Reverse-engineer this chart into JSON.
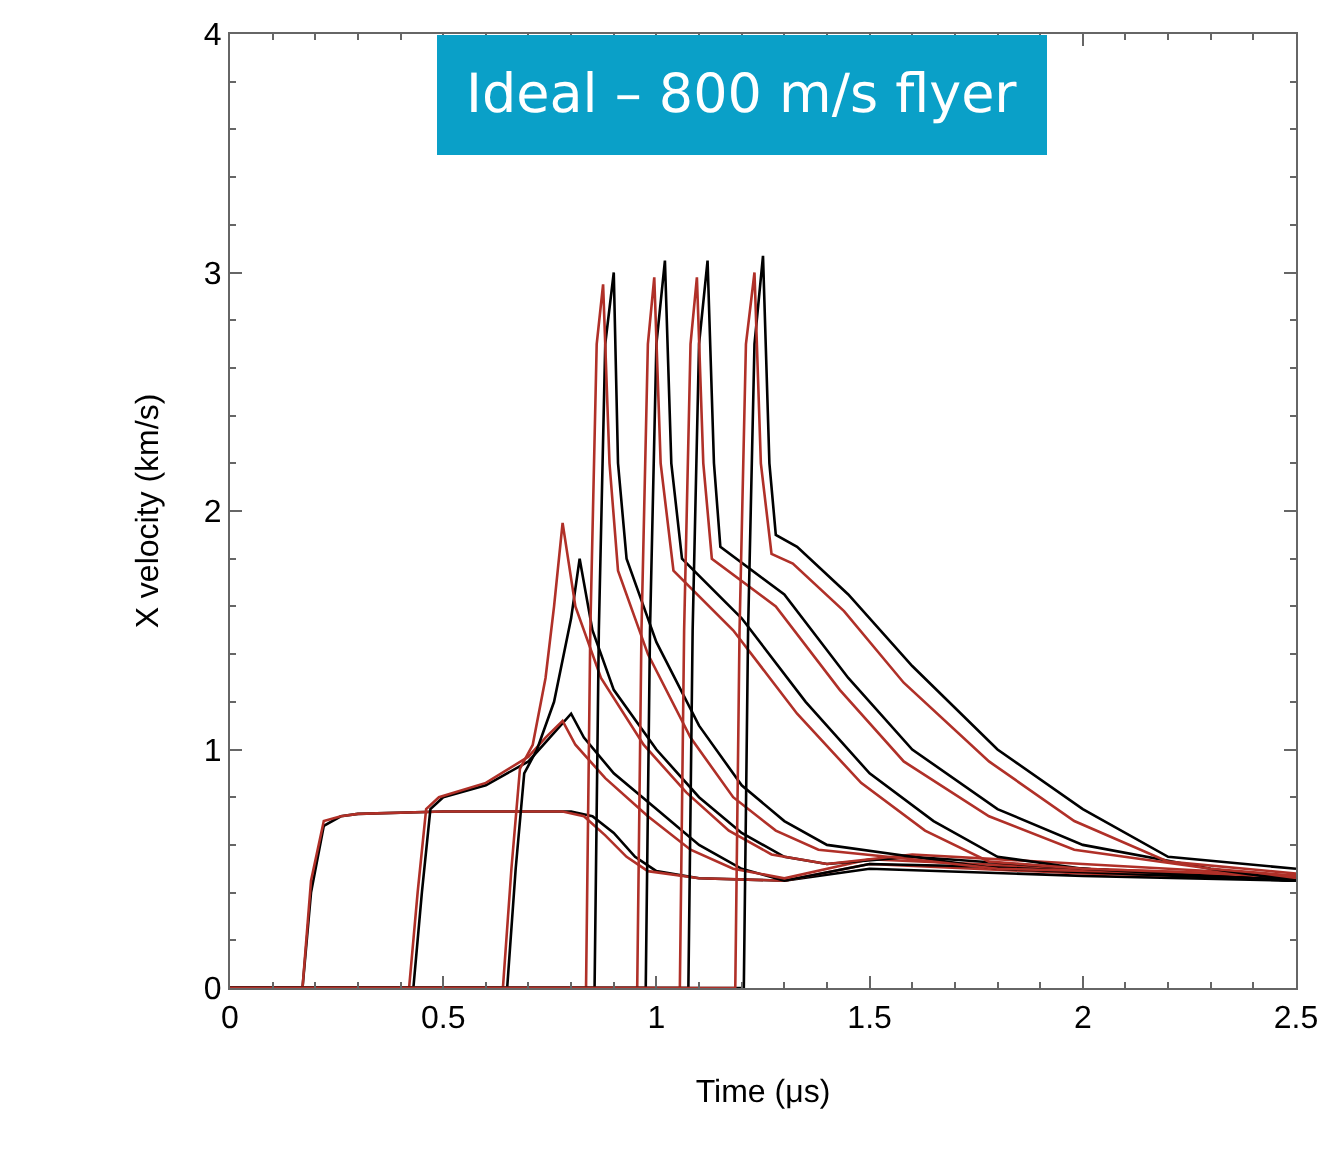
{
  "chart_data": {
    "type": "line",
    "title": "Ideal – 800 m/s flyer",
    "xlabel": "Time (μs)",
    "ylabel": "X velocity (km/s)",
    "xlim": [
      0,
      2.5
    ],
    "ylim": [
      0,
      4
    ],
    "xticks": [
      0,
      0.5,
      1,
      1.5,
      2,
      2.5
    ],
    "yticks": [
      0,
      1,
      2,
      3,
      4
    ],
    "series": [
      {
        "color": "#000000",
        "x": [
          0,
          0.17,
          0.19,
          0.22,
          0.26,
          0.3,
          0.5,
          0.7,
          0.8,
          0.85,
          0.9,
          0.95,
          1.0,
          1.1,
          1.3,
          1.5,
          2.0,
          2.5
        ],
        "values": [
          0,
          0,
          0.4,
          0.68,
          0.72,
          0.73,
          0.74,
          0.74,
          0.74,
          0.72,
          0.65,
          0.55,
          0.49,
          0.46,
          0.45,
          0.5,
          0.47,
          0.45
        ]
      },
      {
        "color": "#b03028",
        "x": [
          0,
          0.17,
          0.19,
          0.22,
          0.26,
          0.3,
          0.5,
          0.7,
          0.78,
          0.83,
          0.88,
          0.93,
          0.98,
          1.1,
          1.3,
          1.5,
          2.0,
          2.5
        ],
        "values": [
          0,
          0,
          0.45,
          0.7,
          0.72,
          0.73,
          0.74,
          0.74,
          0.74,
          0.72,
          0.64,
          0.55,
          0.49,
          0.46,
          0.45,
          0.52,
          0.48,
          0.46
        ]
      },
      {
        "color": "#000000",
        "x": [
          0,
          0.43,
          0.45,
          0.47,
          0.5,
          0.6,
          0.7,
          0.75,
          0.8,
          0.83,
          0.9,
          1.0,
          1.1,
          1.2,
          1.3,
          1.5,
          2.0,
          2.5
        ],
        "values": [
          0,
          0,
          0.4,
          0.75,
          0.8,
          0.85,
          0.95,
          1.05,
          1.15,
          1.05,
          0.9,
          0.75,
          0.6,
          0.5,
          0.45,
          0.52,
          0.5,
          0.45
        ]
      },
      {
        "color": "#b03028",
        "x": [
          0,
          0.42,
          0.44,
          0.46,
          0.49,
          0.6,
          0.7,
          0.74,
          0.78,
          0.81,
          0.88,
          0.98,
          1.08,
          1.18,
          1.3,
          1.5,
          2.0,
          2.5
        ],
        "values": [
          0,
          0,
          0.4,
          0.75,
          0.8,
          0.86,
          0.97,
          1.05,
          1.12,
          1.02,
          0.88,
          0.72,
          0.58,
          0.5,
          0.46,
          0.54,
          0.5,
          0.47
        ]
      },
      {
        "color": "#000000",
        "x": [
          0,
          0.65,
          0.67,
          0.69,
          0.72,
          0.76,
          0.8,
          0.82,
          0.85,
          0.9,
          1.0,
          1.1,
          1.2,
          1.3,
          1.4,
          1.6,
          2.0,
          2.5
        ],
        "values": [
          0,
          0,
          0.5,
          0.9,
          1.0,
          1.2,
          1.55,
          1.8,
          1.5,
          1.25,
          1.0,
          0.8,
          0.65,
          0.55,
          0.52,
          0.55,
          0.5,
          0.45
        ]
      },
      {
        "color": "#b03028",
        "x": [
          0,
          0.64,
          0.66,
          0.68,
          0.71,
          0.74,
          0.76,
          0.78,
          0.81,
          0.87,
          0.97,
          1.07,
          1.17,
          1.27,
          1.4,
          1.6,
          2.0,
          2.5
        ],
        "values": [
          0,
          0,
          0.5,
          0.92,
          1.02,
          1.3,
          1.6,
          1.95,
          1.6,
          1.3,
          1.02,
          0.82,
          0.66,
          0.56,
          0.52,
          0.56,
          0.52,
          0.47
        ]
      },
      {
        "color": "#000000",
        "x": [
          0,
          0.855,
          0.865,
          0.88,
          0.9,
          0.91,
          0.93,
          0.97,
          1.0,
          1.1,
          1.2,
          1.3,
          1.4,
          1.6,
          1.8,
          2.5
        ],
        "values": [
          0,
          0,
          1.5,
          2.7,
          3.0,
          2.2,
          1.8,
          1.6,
          1.45,
          1.1,
          0.85,
          0.7,
          0.6,
          0.55,
          0.5,
          0.45
        ]
      },
      {
        "color": "#b03028",
        "x": [
          0,
          0.835,
          0.845,
          0.86,
          0.875,
          0.89,
          0.91,
          0.95,
          0.98,
          1.08,
          1.18,
          1.28,
          1.38,
          1.6,
          1.8,
          2.5
        ],
        "values": [
          0,
          0,
          1.5,
          2.7,
          2.95,
          2.2,
          1.75,
          1.55,
          1.4,
          1.05,
          0.8,
          0.66,
          0.58,
          0.54,
          0.5,
          0.47
        ]
      },
      {
        "color": "#000000",
        "x": [
          0,
          0.975,
          0.985,
          1.0,
          1.02,
          1.035,
          1.06,
          1.2,
          1.35,
          1.5,
          1.65,
          1.8,
          2.0,
          2.5
        ],
        "values": [
          0,
          0,
          1.5,
          2.7,
          3.05,
          2.2,
          1.8,
          1.55,
          1.2,
          0.9,
          0.7,
          0.55,
          0.5,
          0.45
        ]
      },
      {
        "color": "#b03028",
        "x": [
          0,
          0.955,
          0.965,
          0.98,
          0.995,
          1.01,
          1.04,
          1.18,
          1.33,
          1.48,
          1.63,
          1.78,
          2.0,
          2.5
        ],
        "values": [
          0,
          0,
          1.5,
          2.7,
          2.98,
          2.2,
          1.75,
          1.5,
          1.15,
          0.86,
          0.66,
          0.53,
          0.5,
          0.47
        ]
      },
      {
        "color": "#000000",
        "x": [
          0,
          1.075,
          1.085,
          1.1,
          1.12,
          1.135,
          1.15,
          1.3,
          1.45,
          1.6,
          1.8,
          2.0,
          2.3,
          2.5
        ],
        "values": [
          0,
          0,
          1.5,
          2.7,
          3.05,
          2.2,
          1.85,
          1.65,
          1.3,
          1.0,
          0.75,
          0.6,
          0.5,
          0.45
        ]
      },
      {
        "color": "#b03028",
        "x": [
          0,
          1.055,
          1.065,
          1.08,
          1.095,
          1.11,
          1.13,
          1.28,
          1.43,
          1.58,
          1.78,
          1.98,
          2.3,
          2.5
        ],
        "values": [
          0,
          0,
          1.5,
          2.7,
          2.98,
          2.2,
          1.8,
          1.6,
          1.25,
          0.95,
          0.72,
          0.58,
          0.5,
          0.47
        ]
      },
      {
        "color": "#000000",
        "x": [
          0,
          1.205,
          1.215,
          1.23,
          1.25,
          1.265,
          1.28,
          1.33,
          1.45,
          1.6,
          1.8,
          2.0,
          2.2,
          2.5
        ],
        "values": [
          0,
          0,
          1.5,
          2.7,
          3.07,
          2.2,
          1.9,
          1.85,
          1.65,
          1.35,
          1.0,
          0.75,
          0.55,
          0.5
        ]
      },
      {
        "color": "#b03028",
        "x": [
          0,
          1.185,
          1.195,
          1.21,
          1.23,
          1.245,
          1.27,
          1.32,
          1.44,
          1.58,
          1.78,
          1.98,
          2.2,
          2.5
        ],
        "values": [
          0,
          0,
          1.5,
          2.7,
          3.0,
          2.2,
          1.82,
          1.78,
          1.58,
          1.28,
          0.95,
          0.7,
          0.53,
          0.48
        ]
      }
    ]
  }
}
